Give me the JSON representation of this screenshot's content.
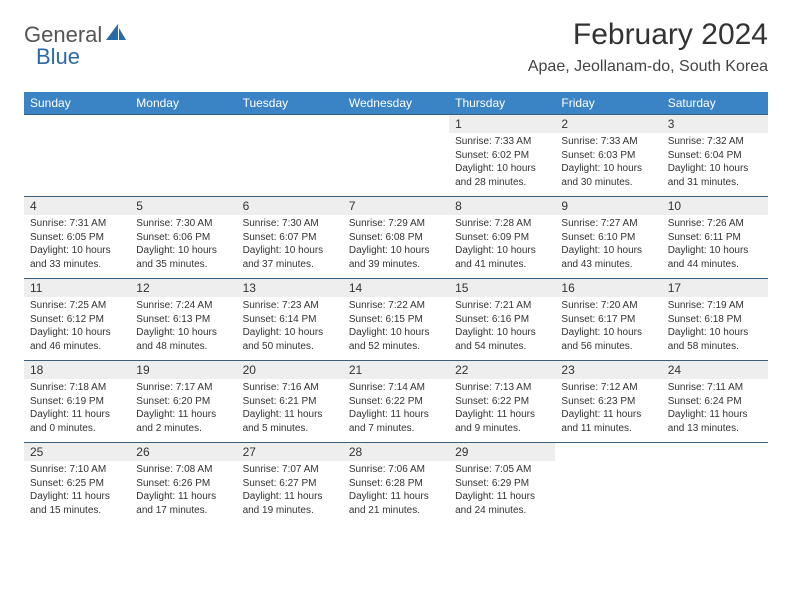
{
  "logo": {
    "text1": "General",
    "text2": "Blue"
  },
  "title": "February 2024",
  "location": "Apae, Jeollanam-do, South Korea",
  "colors": {
    "header_bg": "#3a83c4",
    "header_text": "#ffffff",
    "daynum_bg": "#eeeeee",
    "row_border": "#3a5f7d",
    "logo_blue": "#2b6aa8",
    "text": "#333333"
  },
  "dayNames": [
    "Sunday",
    "Monday",
    "Tuesday",
    "Wednesday",
    "Thursday",
    "Friday",
    "Saturday"
  ],
  "startOffset": 4,
  "days": [
    {
      "n": 1,
      "sunrise": "7:33 AM",
      "sunset": "6:02 PM",
      "daylight": "10 hours and 28 minutes."
    },
    {
      "n": 2,
      "sunrise": "7:33 AM",
      "sunset": "6:03 PM",
      "daylight": "10 hours and 30 minutes."
    },
    {
      "n": 3,
      "sunrise": "7:32 AM",
      "sunset": "6:04 PM",
      "daylight": "10 hours and 31 minutes."
    },
    {
      "n": 4,
      "sunrise": "7:31 AM",
      "sunset": "6:05 PM",
      "daylight": "10 hours and 33 minutes."
    },
    {
      "n": 5,
      "sunrise": "7:30 AM",
      "sunset": "6:06 PM",
      "daylight": "10 hours and 35 minutes."
    },
    {
      "n": 6,
      "sunrise": "7:30 AM",
      "sunset": "6:07 PM",
      "daylight": "10 hours and 37 minutes."
    },
    {
      "n": 7,
      "sunrise": "7:29 AM",
      "sunset": "6:08 PM",
      "daylight": "10 hours and 39 minutes."
    },
    {
      "n": 8,
      "sunrise": "7:28 AM",
      "sunset": "6:09 PM",
      "daylight": "10 hours and 41 minutes."
    },
    {
      "n": 9,
      "sunrise": "7:27 AM",
      "sunset": "6:10 PM",
      "daylight": "10 hours and 43 minutes."
    },
    {
      "n": 10,
      "sunrise": "7:26 AM",
      "sunset": "6:11 PM",
      "daylight": "10 hours and 44 minutes."
    },
    {
      "n": 11,
      "sunrise": "7:25 AM",
      "sunset": "6:12 PM",
      "daylight": "10 hours and 46 minutes."
    },
    {
      "n": 12,
      "sunrise": "7:24 AM",
      "sunset": "6:13 PM",
      "daylight": "10 hours and 48 minutes."
    },
    {
      "n": 13,
      "sunrise": "7:23 AM",
      "sunset": "6:14 PM",
      "daylight": "10 hours and 50 minutes."
    },
    {
      "n": 14,
      "sunrise": "7:22 AM",
      "sunset": "6:15 PM",
      "daylight": "10 hours and 52 minutes."
    },
    {
      "n": 15,
      "sunrise": "7:21 AM",
      "sunset": "6:16 PM",
      "daylight": "10 hours and 54 minutes."
    },
    {
      "n": 16,
      "sunrise": "7:20 AM",
      "sunset": "6:17 PM",
      "daylight": "10 hours and 56 minutes."
    },
    {
      "n": 17,
      "sunrise": "7:19 AM",
      "sunset": "6:18 PM",
      "daylight": "10 hours and 58 minutes."
    },
    {
      "n": 18,
      "sunrise": "7:18 AM",
      "sunset": "6:19 PM",
      "daylight": "11 hours and 0 minutes."
    },
    {
      "n": 19,
      "sunrise": "7:17 AM",
      "sunset": "6:20 PM",
      "daylight": "11 hours and 2 minutes."
    },
    {
      "n": 20,
      "sunrise": "7:16 AM",
      "sunset": "6:21 PM",
      "daylight": "11 hours and 5 minutes."
    },
    {
      "n": 21,
      "sunrise": "7:14 AM",
      "sunset": "6:22 PM",
      "daylight": "11 hours and 7 minutes."
    },
    {
      "n": 22,
      "sunrise": "7:13 AM",
      "sunset": "6:22 PM",
      "daylight": "11 hours and 9 minutes."
    },
    {
      "n": 23,
      "sunrise": "7:12 AM",
      "sunset": "6:23 PM",
      "daylight": "11 hours and 11 minutes."
    },
    {
      "n": 24,
      "sunrise": "7:11 AM",
      "sunset": "6:24 PM",
      "daylight": "11 hours and 13 minutes."
    },
    {
      "n": 25,
      "sunrise": "7:10 AM",
      "sunset": "6:25 PM",
      "daylight": "11 hours and 15 minutes."
    },
    {
      "n": 26,
      "sunrise": "7:08 AM",
      "sunset": "6:26 PM",
      "daylight": "11 hours and 17 minutes."
    },
    {
      "n": 27,
      "sunrise": "7:07 AM",
      "sunset": "6:27 PM",
      "daylight": "11 hours and 19 minutes."
    },
    {
      "n": 28,
      "sunrise": "7:06 AM",
      "sunset": "6:28 PM",
      "daylight": "11 hours and 21 minutes."
    },
    {
      "n": 29,
      "sunrise": "7:05 AM",
      "sunset": "6:29 PM",
      "daylight": "11 hours and 24 minutes."
    }
  ],
  "labels": {
    "sunrise": "Sunrise:",
    "sunset": "Sunset:",
    "daylight": "Daylight:"
  }
}
